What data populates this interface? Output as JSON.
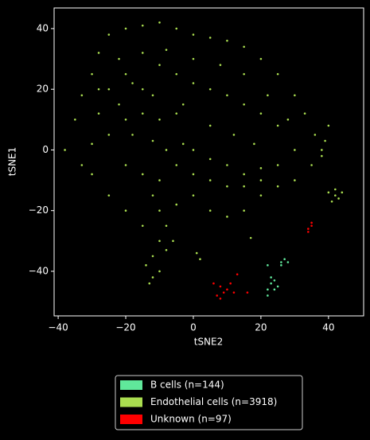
{
  "chart_data": {
    "type": "scatter",
    "xlabel": "tSNE2",
    "ylabel": "tSNE1",
    "xlim": [
      -41.2,
      50.4
    ],
    "ylim": [
      -54.7,
      46.8
    ],
    "xticks": [
      {
        "value": -40,
        "label": "−40"
      },
      {
        "value": -20,
        "label": "−20"
      },
      0,
      20,
      40
    ],
    "yticks": [
      {
        "value": -40,
        "label": "−40"
      },
      {
        "value": -20,
        "label": "−20"
      },
      0,
      20,
      40
    ],
    "series": [
      {
        "name": "B cells (n=144)",
        "color": "#60e89b",
        "x": [
          22,
          23,
          24,
          22,
          25,
          23,
          26,
          27,
          28,
          26,
          24,
          22
        ],
        "y": [
          -38,
          -44,
          -46,
          -48,
          -45,
          -42,
          -37,
          -36,
          -37,
          -38,
          -43,
          -46
        ]
      },
      {
        "name": "Endothelial cells (n=3918)",
        "color": "#aade50",
        "x": [
          -38,
          -35,
          -33,
          -30,
          -28,
          -25,
          -20,
          -15,
          -10,
          -5,
          0,
          5,
          10,
          15,
          20,
          25,
          30,
          33,
          36,
          38,
          35,
          30,
          25,
          20,
          15,
          10,
          5,
          0,
          -5,
          -10,
          -15,
          -20,
          -25,
          -30,
          -33,
          -25,
          -20,
          -18,
          -15,
          -12,
          -22,
          -20,
          -15,
          -10,
          -5,
          -18,
          -12,
          -8,
          -3,
          0,
          5,
          10,
          15,
          20,
          25,
          -25,
          -28,
          -30,
          -20,
          -15,
          -10,
          -5,
          0,
          5,
          10,
          15,
          20,
          -10,
          -5,
          0,
          5,
          10,
          15,
          20,
          25,
          -15,
          -8,
          0,
          8,
          15,
          22,
          28,
          30,
          12,
          5,
          -3,
          18,
          -22,
          -28,
          -12,
          -8,
          -10,
          -12,
          -8,
          -6,
          -14,
          -12,
          -13,
          -10,
          1,
          2,
          17,
          40,
          42,
          43,
          41,
          44,
          42,
          40,
          39,
          38
        ],
        "y": [
          0,
          10,
          18,
          25,
          32,
          38,
          40,
          41,
          42,
          40,
          38,
          37,
          36,
          34,
          30,
          25,
          18,
          12,
          5,
          0,
          -5,
          -10,
          -12,
          -15,
          -20,
          -22,
          -20,
          -15,
          -18,
          -20,
          -25,
          -20,
          -15,
          -8,
          -5,
          20,
          25,
          22,
          20,
          18,
          15,
          10,
          12,
          10,
          12,
          5,
          3,
          0,
          2,
          0,
          -3,
          -5,
          -8,
          -6,
          -5,
          5,
          12,
          2,
          -5,
          -8,
          -10,
          -5,
          -8,
          -10,
          -12,
          -12,
          -10,
          28,
          25,
          22,
          20,
          18,
          15,
          12,
          8,
          32,
          33,
          30,
          28,
          25,
          18,
          10,
          0,
          5,
          8,
          15,
          2,
          30,
          20,
          -15,
          -25,
          -30,
          -35,
          -33,
          -30,
          -38,
          -42,
          -44,
          -40,
          -34,
          -36,
          -29,
          -14,
          -15,
          -16,
          -17,
          -14,
          -13,
          8,
          3,
          -2
        ]
      },
      {
        "name": "Unknown (n=97)",
        "color": "#ff0000",
        "x": [
          6,
          8,
          9,
          10,
          11,
          12,
          8,
          7,
          13,
          16,
          34,
          35,
          35,
          34
        ],
        "y": [
          -44,
          -45,
          -47,
          -46,
          -44,
          -47,
          -49,
          -48,
          -41,
          -47,
          -26,
          -25,
          -24,
          -27
        ]
      }
    ]
  }
}
